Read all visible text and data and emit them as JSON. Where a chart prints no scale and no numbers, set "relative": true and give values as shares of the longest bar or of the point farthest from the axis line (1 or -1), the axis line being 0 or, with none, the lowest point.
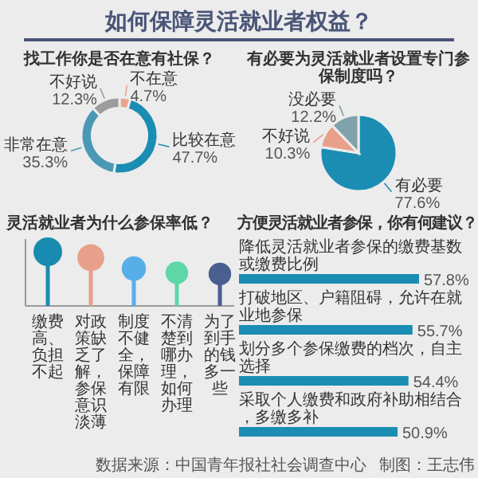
{
  "chart_data": [
    {
      "type": "other",
      "title": "如何保障灵活就业者权益？"
    },
    {
      "type": "donut",
      "title": "找工作你是否在意有社保？",
      "categories": [
        "不在意",
        "比较在意",
        "非常在意",
        "不好说"
      ],
      "values": [
        4.7,
        47.7,
        35.3,
        12.3
      ],
      "value_labels": [
        "4.7%",
        "47.7%",
        "35.3%",
        "12.3%"
      ],
      "colors": [
        "#e8a48f",
        "#1b8db3",
        "#4a98b4",
        "#9a9c9e"
      ]
    },
    {
      "type": "pie",
      "title": "有必要为灵活就业者设置专门参保制度吗？",
      "categories": [
        "有必要",
        "不好说",
        "没必要"
      ],
      "values": [
        77.6,
        10.3,
        12.2
      ],
      "value_labels": [
        "77.6%",
        "10.3%",
        "12.2%"
      ],
      "colors": [
        "#1b8db3",
        "#e8a08a",
        "#7fa3aa"
      ]
    },
    {
      "type": "lollipop",
      "relative": true,
      "title": "灵活就业者为什么参保率低？",
      "categories": [
        "缴费高、负担不起",
        "对政策缺乏了解，参保意识淡薄",
        "制度不健全，保障有限",
        "不清楚到哪办理，如何办理",
        "为了到手的钱多一些"
      ],
      "values": [
        1,
        0.89,
        0.69,
        0.61,
        0.59
      ],
      "sizes": [
        1,
        0.88,
        0.72,
        0.62,
        0.62
      ],
      "colors": [
        "#1a8bb0",
        "#e8a08a",
        "#58aee8",
        "#5dd6a8",
        "#4a5f8f"
      ]
    },
    {
      "type": "bar",
      "orientation": "horizontal",
      "title": "方便灵活就业者参保，你有何建议？",
      "categories": [
        "降低灵活就业者参保的缴费基数或缴费比例",
        "打破地区、户籍阻碍，允许在就业地参保",
        "划分多个参保缴费的档次，自主选择",
        "采取个人缴费和政府补助相结合，多缴多补"
      ],
      "values": [
        57.8,
        55.7,
        54.4,
        50.9
      ],
      "value_labels": [
        "57.8%",
        "55.7%",
        "54.4%",
        "50.9%"
      ],
      "color": "#1b8db3",
      "annotations": [
        "数据来源：中国青年报社社会调查中心",
        "制图：王志伟"
      ]
    }
  ]
}
